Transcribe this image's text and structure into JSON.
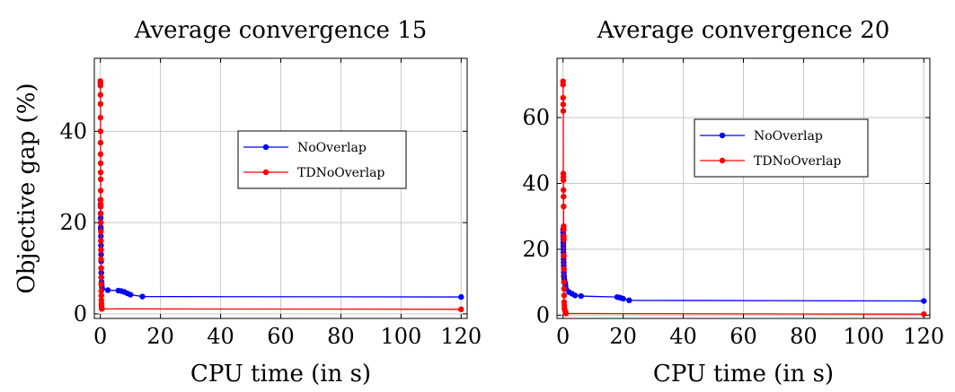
{
  "chart_data": [
    {
      "type": "line",
      "title": "Average convergence 15",
      "xlabel": "CPU time (in s)",
      "ylabel": "Objective gap (%)",
      "xlim": [
        -2,
        122
      ],
      "ylim": [
        -1,
        56
      ],
      "xticks": [
        0,
        20,
        40,
        60,
        80,
        100,
        120
      ],
      "yticks": [
        0,
        20,
        40
      ],
      "grid": true,
      "legend_position": "upper-right",
      "series": [
        {
          "name": "NoOverlap",
          "color": "#0000ff",
          "x": [
            0.02,
            0.04,
            0.06,
            0.08,
            0.1,
            0.12,
            0.14,
            0.16,
            0.18,
            0.2,
            0.22,
            0.24,
            0.26,
            0.28,
            0.3,
            0.32,
            0.35,
            0.4,
            0.45,
            0.5,
            0.6,
            2.5,
            6,
            7,
            8,
            9,
            10,
            14,
            120
          ],
          "y": [
            25,
            24,
            23.5,
            22,
            21,
            20,
            19,
            18.5,
            17,
            16,
            15,
            14,
            13,
            11.5,
            10,
            9,
            8,
            7,
            6.5,
            6,
            5.5,
            5.2,
            5.1,
            5,
            4.8,
            4.5,
            4.2,
            3.8,
            3.7
          ]
        },
        {
          "name": "TDNoOverlap",
          "color": "#ff0000",
          "x": [
            0.01,
            0.02,
            0.03,
            0.04,
            0.05,
            0.06,
            0.07,
            0.08,
            0.09,
            0.1,
            0.11,
            0.12,
            0.13,
            0.14,
            0.15,
            0.16,
            0.17,
            0.18,
            0.19,
            0.2,
            0.22,
            0.24,
            0.26,
            0.28,
            0.3,
            0.32,
            0.34,
            0.36,
            0.38,
            0.4,
            0.45,
            0.5,
            120
          ],
          "y": [
            51,
            50.5,
            50,
            48,
            46,
            43,
            40,
            37.5,
            35,
            33,
            31,
            29.5,
            27,
            25,
            24,
            23.5,
            22,
            20,
            18,
            16,
            14,
            12,
            10,
            8,
            6.5,
            5,
            4,
            3,
            2.2,
            1.8,
            1.3,
            1.1,
            1.0
          ]
        }
      ]
    },
    {
      "type": "line",
      "title": "Average convergence 20",
      "xlabel": "CPU time (in s)",
      "ylabel": "",
      "xlim": [
        -2,
        122
      ],
      "ylim": [
        -1,
        78
      ],
      "xticks": [
        0,
        20,
        40,
        60,
        80,
        100,
        120
      ],
      "yticks": [
        0,
        20,
        40,
        60
      ],
      "grid": true,
      "legend_position": "upper-right",
      "series": [
        {
          "name": "NoOverlap",
          "color": "#0000ff",
          "x": [
            0.02,
            0.04,
            0.06,
            0.08,
            0.1,
            0.12,
            0.14,
            0.16,
            0.18,
            0.2,
            0.22,
            0.24,
            0.26,
            0.28,
            0.3,
            0.35,
            0.4,
            0.5,
            0.6,
            0.7,
            0.8,
            1,
            2,
            3,
            4,
            6,
            18,
            19,
            20,
            22,
            120
          ],
          "y": [
            26,
            25,
            24,
            23,
            22,
            21,
            20,
            19,
            18,
            17,
            16,
            15,
            14,
            13,
            12,
            11.5,
            11,
            10.5,
            10,
            9.5,
            9,
            8,
            7,
            6.5,
            6,
            5.8,
            5.5,
            5.3,
            5,
            4.5,
            4.3
          ]
        },
        {
          "name": "TDNoOverlap",
          "color": "#ff0000",
          "x": [
            0.01,
            0.02,
            0.04,
            0.06,
            0.08,
            0.1,
            0.12,
            0.14,
            0.16,
            0.18,
            0.2,
            0.22,
            0.24,
            0.26,
            0.28,
            0.3,
            0.32,
            0.34,
            0.36,
            0.38,
            0.4,
            0.45,
            0.5,
            0.6,
            0.8,
            1,
            120
          ],
          "y": [
            71,
            70,
            66,
            64,
            62,
            43,
            42,
            41,
            38,
            36,
            33,
            27,
            26,
            24,
            23,
            18,
            14,
            10,
            8,
            6,
            4,
            3,
            2,
            1.5,
            1,
            0.5,
            0.3
          ]
        }
      ]
    }
  ]
}
